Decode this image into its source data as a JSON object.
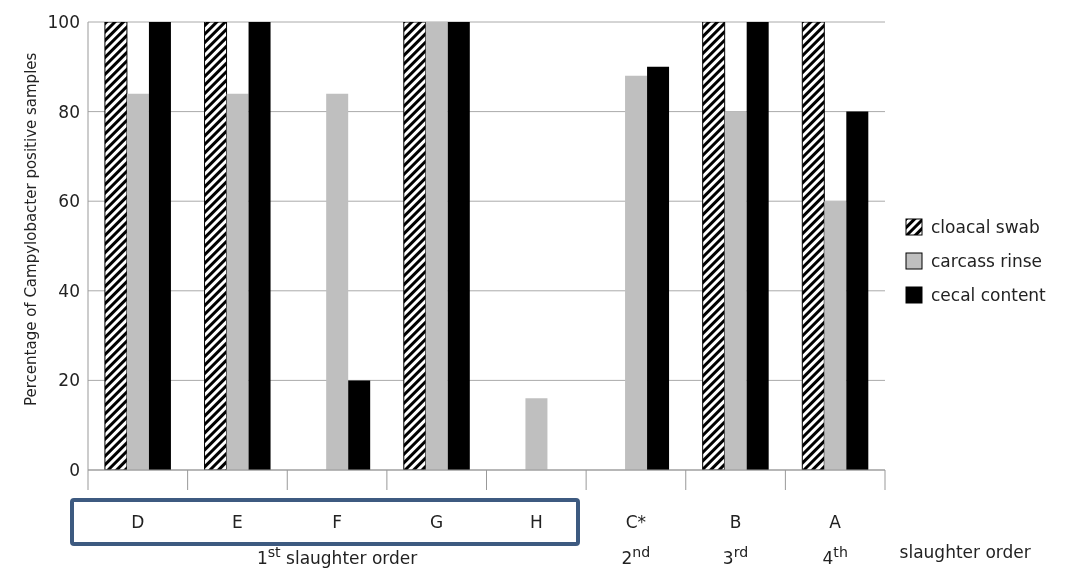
{
  "chart_data": {
    "type": "bar",
    "ylabel": "Percentage of Campylobacter positive samples",
    "categories": [
      "D",
      "E",
      "F",
      "G",
      "H",
      "C*",
      "B",
      "A"
    ],
    "series": [
      {
        "name": "cloacal swab",
        "color": "#000000",
        "values": [
          100,
          100,
          0,
          100,
          0,
          0,
          100,
          100
        ]
      },
      {
        "name": "carcass rinse",
        "color": "#bfbfbf",
        "values": [
          84,
          84,
          84,
          100,
          16,
          88,
          80,
          60
        ]
      },
      {
        "name": "cecal content",
        "color": "#000000",
        "values": [
          100,
          100,
          20,
          100,
          0,
          90,
          100,
          80
        ]
      }
    ],
    "ylim": [
      0,
      100
    ],
    "yticks": [
      0,
      20,
      40,
      60,
      80,
      100
    ],
    "grid": "y",
    "legend": "right",
    "annotations": [
      "1$^{st}$ slaughter order",
      "2$^{nd}$",
      "3$^{rd}$",
      "4$^{th}$",
      "slaughter order"
    ]
  }
}
